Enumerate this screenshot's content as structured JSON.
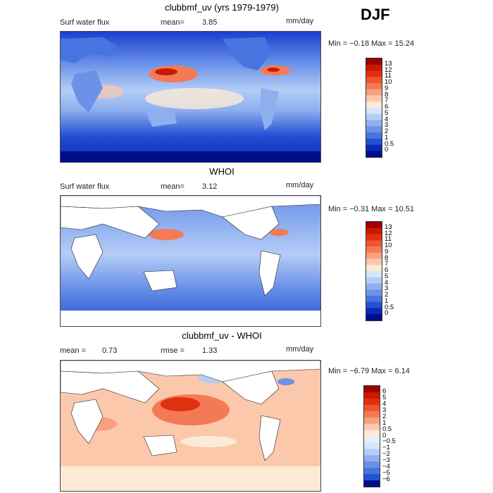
{
  "season": "DJF",
  "units": "mm/day",
  "panels": [
    {
      "title": "clubbmf_uv (yrs 1979-1979)",
      "variable": "Surf water flux",
      "mean_label": "mean=",
      "mean_value": "3.85",
      "minmax_text": "Min =  −0.18 Max =  15.24"
    },
    {
      "title": "WHOI",
      "variable": "Surf water flux",
      "mean_label": "mean=",
      "mean_value": "3.12",
      "minmax_text": "Min =  −0.31 Max =  10.51"
    },
    {
      "title": "clubbmf_uv - WHOI",
      "mean_label": "mean =",
      "mean_value": "0.73",
      "rmse_label": "rmse =",
      "rmse_value": "1.33",
      "minmax_text": "Min =  −6.79 Max =   6.14"
    }
  ],
  "chart_data": [
    {
      "type": "heatmap",
      "title": "clubbmf_uv (yrs 1979-1979)",
      "field": "Surf water flux",
      "units": "mm/day",
      "mean": 3.85,
      "min": -0.18,
      "max": 15.24,
      "colorbar_levels": [
        "13",
        "12",
        "11",
        "10",
        "9",
        "8",
        "7",
        "6",
        "5",
        "4",
        "3",
        "2",
        "1",
        "0.5",
        "0"
      ],
      "colorbar_colors": [
        "#a00000",
        "#c81a00",
        "#e03010",
        "#ee5530",
        "#f47a55",
        "#f8a080",
        "#fcc8ac",
        "#fbebd6",
        "#d6e6fb",
        "#b4cdf6",
        "#8eb0ef",
        "#6b92e8",
        "#4775e0",
        "#2450d4",
        "#0a2ab8",
        "#000e8a"
      ]
    },
    {
      "type": "heatmap",
      "title": "WHOI",
      "field": "Surf water flux",
      "units": "mm/day",
      "mean": 3.12,
      "min": -0.31,
      "max": 10.51,
      "colorbar_levels": [
        "13",
        "12",
        "11",
        "10",
        "9",
        "8",
        "7",
        "6",
        "5",
        "4",
        "3",
        "2",
        "1",
        "0.5",
        "0"
      ],
      "colorbar_colors": [
        "#a00000",
        "#c81a00",
        "#e03010",
        "#ee5530",
        "#f47a55",
        "#f8a080",
        "#fcc8ac",
        "#fbebd6",
        "#d6e6fb",
        "#b4cdf6",
        "#8eb0ef",
        "#6b92e8",
        "#4775e0",
        "#2450d4",
        "#0a2ab8",
        "#000e8a"
      ]
    },
    {
      "type": "heatmap",
      "title": "clubbmf_uv - WHOI",
      "units": "mm/day",
      "mean": 0.73,
      "rmse": 1.33,
      "min": -6.79,
      "max": 6.14,
      "colorbar_levels": [
        "6",
        "5",
        "4",
        "3",
        "2",
        "1",
        "0.5",
        "0",
        "−0.5",
        "−1",
        "−2",
        "−3",
        "−4",
        "−5",
        "−6"
      ],
      "colorbar_colors": [
        "#a00000",
        "#c81a00",
        "#e03010",
        "#ee5530",
        "#f47a55",
        "#f8a080",
        "#fcc8ac",
        "#fbebd6",
        "#e4eefc",
        "#d6e6fb",
        "#b4cdf6",
        "#8eb0ef",
        "#6b92e8",
        "#4775e0",
        "#2450d4",
        "#000e8a"
      ]
    }
  ]
}
